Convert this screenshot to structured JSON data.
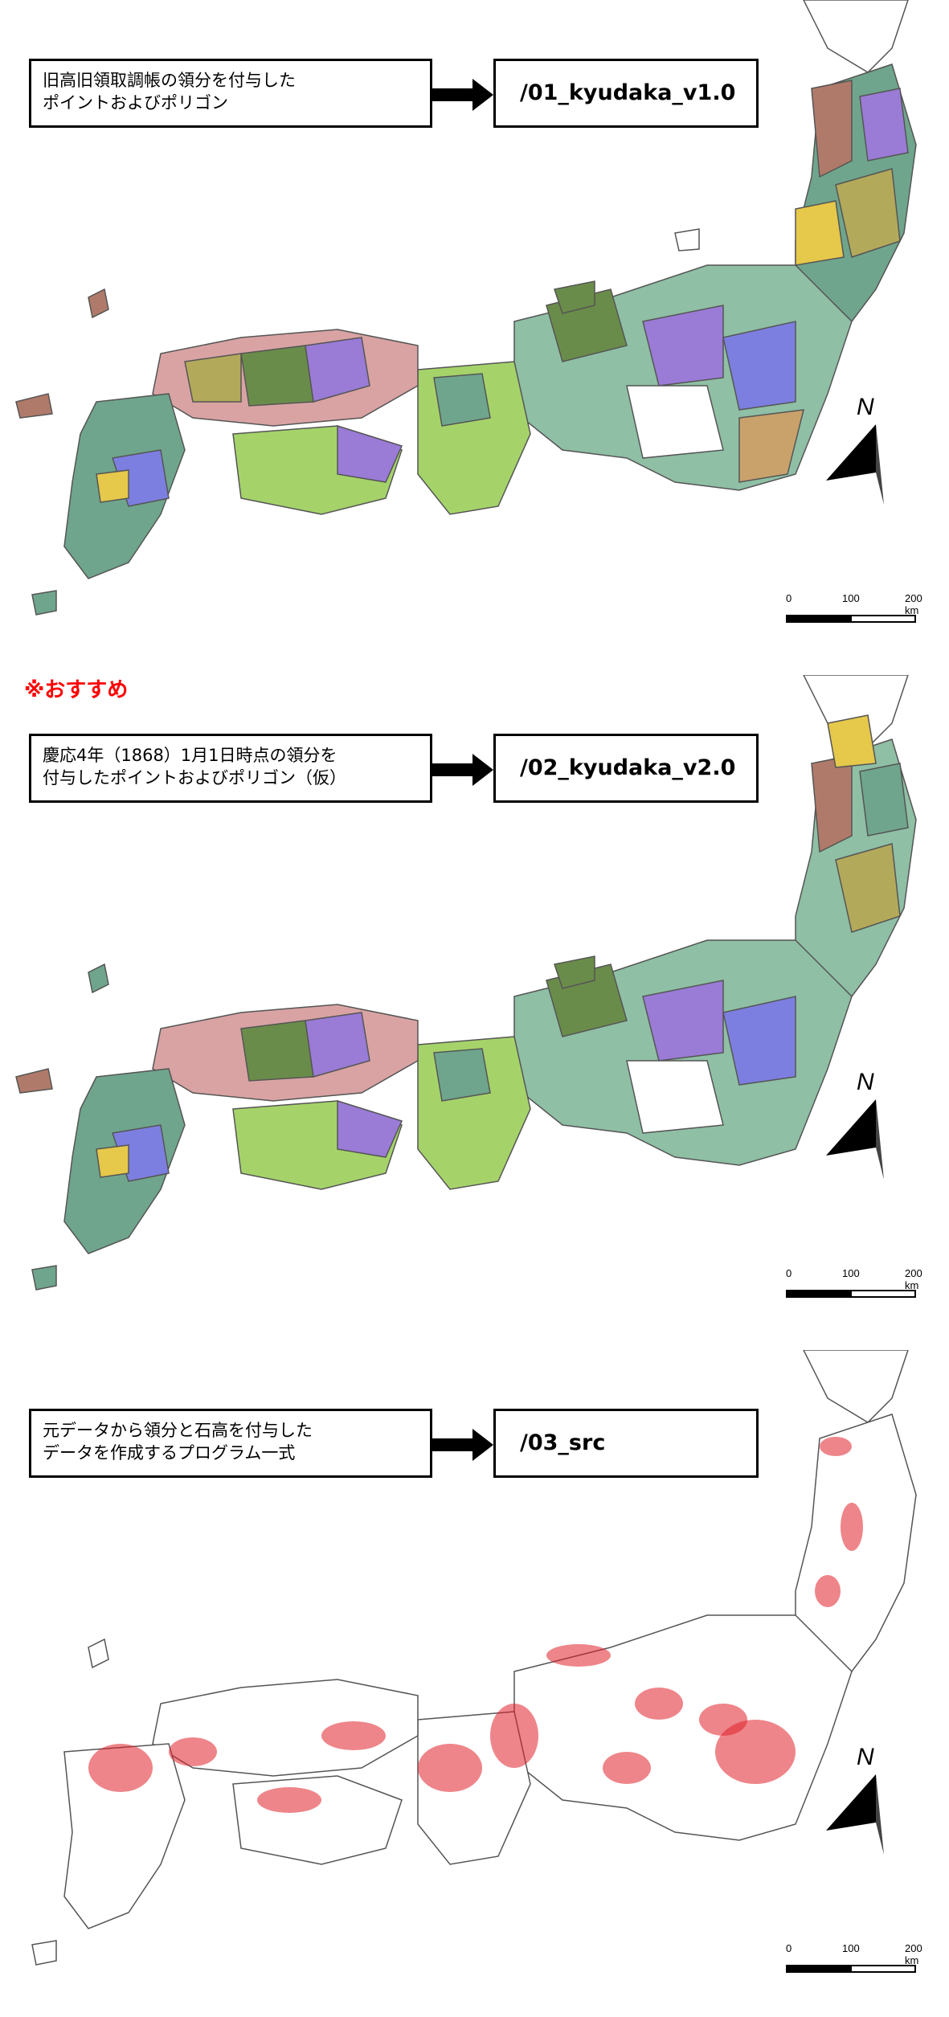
{
  "panels": [
    {
      "description_lines": [
        "旧高旧領取調帳の領分を付与した",
        "ポイントおよびポリゴン"
      ],
      "destination": "/01_kyudaka_v1.0",
      "badge": ""
    },
    {
      "description_lines": [
        "慶応4年（1868）1月1日時点の領分を",
        "付与したポイントおよびポリゴン（仮）"
      ],
      "destination": "/02_kyudaka_v2.0",
      "badge": "※おすすめ"
    },
    {
      "description_lines": [
        "元データから領分と石高を付与した",
        "データを作成するプログラム一式"
      ],
      "destination": "/03_src",
      "badge": ""
    }
  ],
  "scale_bar": {
    "labels": [
      "0",
      "100",
      "200 km"
    ]
  },
  "north_arrow": {
    "label": "N"
  },
  "colors": {
    "border": "#000000",
    "badge": "#ff0000",
    "heat": "#e0202a",
    "domain_palette": [
      "#9a7bd6",
      "#6fa58c",
      "#b3a95b",
      "#a5d36a",
      "#c9a26b",
      "#8fbfa5",
      "#6a8c4a",
      "#e6c84a",
      "#d9a3a3",
      "#7c7fe0",
      "#b07a6a"
    ]
  }
}
